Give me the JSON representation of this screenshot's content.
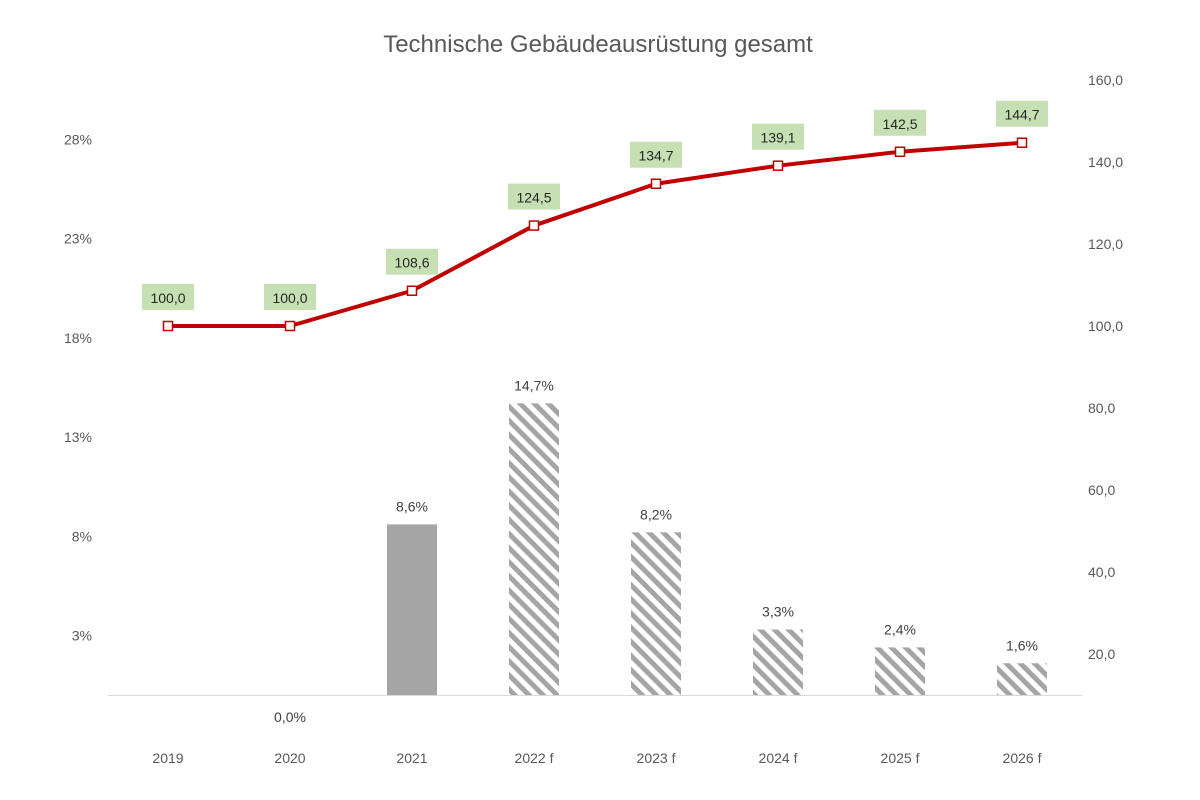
{
  "chart_data": {
    "type": "bar+line",
    "title": "Technische Gebäudeausrüstung gesamt",
    "categories": [
      "2019",
      "2020",
      "2021",
      "2022 f",
      "2023 f",
      "2024 f",
      "2025 f",
      "2026 f"
    ],
    "bar_series": {
      "axis": "left",
      "values": [
        null,
        0.0,
        8.6,
        14.7,
        8.2,
        3.3,
        2.4,
        1.6
      ],
      "labels": [
        "",
        "0,0%",
        "8,6%",
        "14,7%",
        "8,2%",
        "3,3%",
        "2,4%",
        "1,6%"
      ],
      "styles": [
        "none",
        "none",
        "solid",
        "hatched",
        "hatched",
        "hatched",
        "hatched",
        "hatched"
      ]
    },
    "line_series": {
      "axis": "right",
      "values": [
        100.0,
        100.0,
        108.6,
        124.5,
        134.7,
        139.1,
        142.5,
        144.7
      ],
      "labels": [
        "100,0",
        "100,0",
        "108,6",
        "124,5",
        "134,7",
        "139,1",
        "142,5",
        "144,7"
      ]
    },
    "left_axis": {
      "ticks": [
        3,
        8,
        13,
        18,
        23,
        28
      ],
      "tick_labels": [
        "3%",
        "8%",
        "13%",
        "18%",
        "23%",
        "28%"
      ],
      "ylim": [
        0,
        31
      ]
    },
    "right_axis": {
      "ticks": [
        20,
        40,
        60,
        80,
        100,
        120,
        140,
        160
      ],
      "tick_labels": [
        "20,0",
        "40,0",
        "60,0",
        "80,0",
        "100,0",
        "120,0",
        "140,0",
        "160,0"
      ],
      "ylim": [
        10,
        160
      ]
    },
    "grid": false,
    "legend": "none",
    "colors": {
      "bar_solid": "#a5a5a5",
      "bar_hatch": "#a5a5a5",
      "line": "#c00000",
      "marker_fill": "#ffffff",
      "label_bg": "#c6e0b4",
      "axis_line": "#d9d9d9",
      "text": "#595959"
    }
  }
}
